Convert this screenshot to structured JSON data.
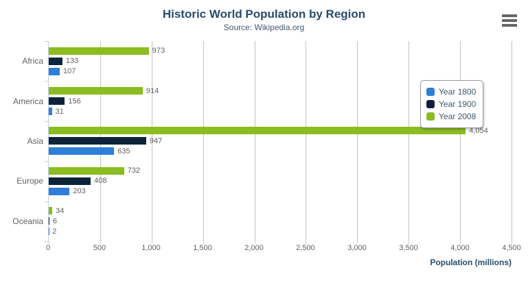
{
  "title": "Historic World Population by Region",
  "subtitle": "Source: Wikipedia.org",
  "export_menu": {
    "icon": "hamburger-menu-icon"
  },
  "colors": {
    "title": "#274b6d",
    "subtitle": "#3E576F",
    "axis_labels": "#606060",
    "data_labels": "#606060",
    "gridline": "#C0C0C0",
    "axis_line": "#C0D0E0",
    "legend_border": "#999999",
    "export_icon": "#666666"
  },
  "chart_data": {
    "type": "bar",
    "orientation": "horizontal",
    "title": "Historic World Population by Region",
    "subtitle": "Source: Wikipedia.org",
    "categories": [
      "Africa",
      "America",
      "Asia",
      "Europe",
      "Oceania"
    ],
    "series": [
      {
        "name": "Year 1800",
        "color": "#2f7ed8",
        "values": [
          107,
          31,
          635,
          203,
          2
        ]
      },
      {
        "name": "Year 1900",
        "color": "#0d233a",
        "values": [
          133,
          156,
          947,
          408,
          6
        ]
      },
      {
        "name": "Year 2008",
        "color": "#8bbc21",
        "values": [
          973,
          914,
          4054,
          732,
          34
        ]
      }
    ],
    "stack_order_top_to_bottom": [
      "Year 2008",
      "Year 1900",
      "Year 1800"
    ],
    "data_labels": true,
    "xlabel": "Population (millions)",
    "ylabel": "",
    "xlim": [
      0,
      4500
    ],
    "xticks": [
      "0",
      "500",
      "1,000",
      "1,500",
      "2,000",
      "2,500",
      "3,000",
      "3,500",
      "4,000",
      "4,500"
    ],
    "grid": true,
    "legend_position": "right"
  }
}
